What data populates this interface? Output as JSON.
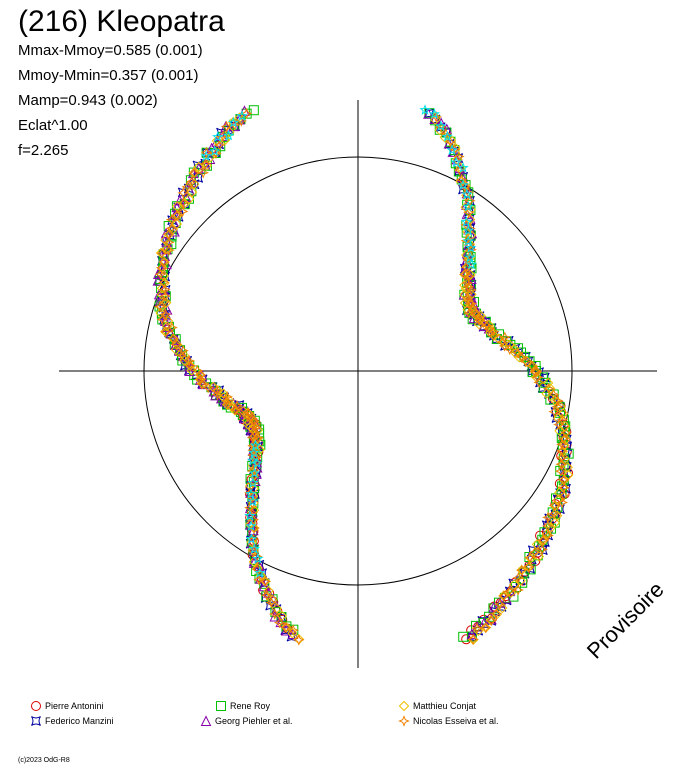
{
  "chart_data": {
    "type": "scatter",
    "title": "(216) Kleopatra",
    "stats": [
      "Mmax-Mmoy=0.585 (0.001)",
      "Mmoy-Mmin=0.357 (0.001)",
      "Mamp=0.943 (0.002)",
      "Eclat^1.00",
      "f=2.265"
    ],
    "watermark": "Provisoire",
    "reference_circle_radius": 1.0,
    "axes": {
      "xlim": [
        -1.4,
        1.4
      ],
      "ylim": [
        -1.4,
        1.4
      ],
      "grid": false,
      "ticks": false
    },
    "colors": {
      "Pierre Antonini": "#d90000",
      "Federico Manzini": "#0000a0",
      "Rene Roy": "#00c000",
      "Georg Piehler et al.": "#8800aa",
      "Matthieu Conjat": "#f0c000",
      "Nicolas Esseiva et al.": "#f08000",
      "cyan_series": "#00e0f0"
    },
    "series": [
      {
        "name": "Pierre Antonini",
        "marker": "circle",
        "color": "#d90000",
        "phase_ranges": [
          [
            0.55,
            0.98
          ]
        ]
      },
      {
        "name": "Federico Manzini",
        "marker": "square-star",
        "color": "#0000a0",
        "phase_ranges": [
          [
            0.0,
            1.0
          ]
        ]
      },
      {
        "name": "Rene Roy",
        "marker": "square",
        "color": "#00c000",
        "phase_ranges": [
          [
            0.0,
            1.0
          ]
        ]
      },
      {
        "name": "Georg Piehler et al.",
        "marker": "triangle",
        "color": "#8800aa",
        "phase_ranges": [
          [
            0.05,
            0.85
          ]
        ]
      },
      {
        "name": "Matthieu Conjat",
        "marker": "diamond",
        "color": "#f0c000",
        "phase_ranges": [
          [
            0.0,
            1.0
          ]
        ]
      },
      {
        "name": "Nicolas Esseiva et al.",
        "marker": "star4",
        "color": "#f08000",
        "phase_ranges": [
          [
            0.0,
            1.0
          ]
        ]
      },
      {
        "name": "",
        "marker": "star5",
        "color": "#00e0f0",
        "phase_ranges": [
          [
            0.12,
            0.35
          ],
          [
            0.6,
            0.68
          ]
        ]
      }
    ],
    "lightcurve_model": {
      "description": "polar plot of relative flux vs rotational phase",
      "harmonics": [
        {
          "k": 2,
          "amplitude": 0.38,
          "phase": 2.5
        },
        {
          "k": 4,
          "amplitude": 0.1,
          "phase": 0.6
        },
        {
          "k": 1,
          "amplitude": 0.03,
          "phase": 0.0
        }
      ],
      "base": 1.02,
      "phase_offset": 0.0
    },
    "legend": [
      {
        "label": "Pierre Antonini",
        "marker": "circle",
        "color": "#d90000"
      },
      {
        "label": "Federico Manzini",
        "marker": "square-star",
        "color": "#0000a0"
      },
      {
        "label": "Rene Roy",
        "marker": "square",
        "color": "#00c000"
      },
      {
        "label": "Georg Piehler et al.",
        "marker": "triangle",
        "color": "#8800aa"
      },
      {
        "label": "Matthieu Conjat",
        "marker": "diamond",
        "color": "#f0c000"
      },
      {
        "label": "Nicolas Esseiva et al.",
        "marker": "star4",
        "color": "#f08000"
      }
    ],
    "credit": "(c)2023 OdG-R8"
  }
}
